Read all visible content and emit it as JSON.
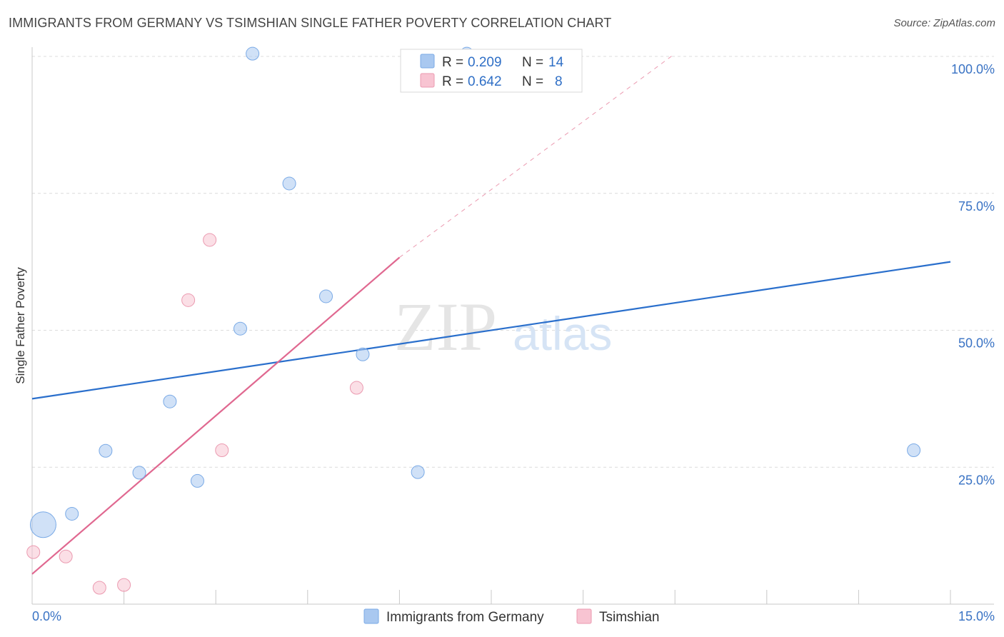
{
  "title": "IMMIGRANTS FROM GERMANY VS TSIMSHIAN SINGLE FATHER POVERTY CORRELATION CHART",
  "source": "Source: ZipAtlas.com",
  "watermark": {
    "zip": "ZIP",
    "atlas": "atlas"
  },
  "chart_data": {
    "type": "scatter",
    "title": "IMMIGRANTS FROM GERMANY VS TSIMSHIAN SINGLE FATHER POVERTY CORRELATION CHART",
    "xlabel": "",
    "ylabel": "Single Father Poverty",
    "xlim": [
      0,
      15
    ],
    "ylim": [
      0,
      100
    ],
    "x_ticks": [
      "0.0%",
      "15.0%"
    ],
    "y_ticks": [
      {
        "value": 25,
        "label": "25.0%"
      },
      {
        "value": 50,
        "label": "50.0%"
      },
      {
        "value": 75,
        "label": "75.0%"
      },
      {
        "value": 100,
        "label": "100.0%"
      }
    ],
    "grid": true,
    "legend_position": "top-center",
    "series": [
      {
        "name": "Immigrants from Germany",
        "color": "#a9c8f0",
        "stroke": "#7aaae6",
        "line_color": "#2a6fcc",
        "R": "0.209",
        "N": "14",
        "trend": {
          "x": [
            0,
            15
          ],
          "y": [
            37.5,
            62.5
          ]
        },
        "points": [
          {
            "x": 0.18,
            "y": 14.5,
            "size": 18
          },
          {
            "x": 0.65,
            "y": 16.5,
            "size": 9
          },
          {
            "x": 1.2,
            "y": 28,
            "size": 9
          },
          {
            "x": 1.75,
            "y": 24,
            "size": 9
          },
          {
            "x": 2.25,
            "y": 37,
            "size": 9
          },
          {
            "x": 2.7,
            "y": 22.5,
            "size": 9
          },
          {
            "x": 3.4,
            "y": 50.3,
            "size": 9
          },
          {
            "x": 3.6,
            "y": 100.5,
            "size": 9
          },
          {
            "x": 4.2,
            "y": 76.8,
            "size": 9
          },
          {
            "x": 4.8,
            "y": 56.2,
            "size": 9
          },
          {
            "x": 5.4,
            "y": 45.6,
            "size": 9
          },
          {
            "x": 6.3,
            "y": 24.1,
            "size": 9
          },
          {
            "x": 7.1,
            "y": 100.5,
            "size": 9
          },
          {
            "x": 14.4,
            "y": 28.1,
            "size": 9
          }
        ]
      },
      {
        "name": "Tsimshian",
        "color": "#f8c4d2",
        "stroke": "#eb9ab0",
        "line_color": "#e06890",
        "R": "0.642",
        "N": "8",
        "trend": {
          "x": [
            0,
            6
          ],
          "y": [
            5.5,
            63.3
          ]
        },
        "trend_ext": {
          "x": [
            6,
            10.5
          ],
          "y": [
            63.3,
            100.5
          ]
        },
        "points": [
          {
            "x": 0.02,
            "y": 9.5,
            "size": 9
          },
          {
            "x": 0.55,
            "y": 8.7,
            "size": 9
          },
          {
            "x": 1.1,
            "y": 3,
            "size": 9
          },
          {
            "x": 1.5,
            "y": 3.5,
            "size": 9
          },
          {
            "x": 2.55,
            "y": 55.5,
            "size": 9
          },
          {
            "x": 2.9,
            "y": 66.5,
            "size": 9
          },
          {
            "x": 3.1,
            "y": 28.1,
            "size": 9
          },
          {
            "x": 5.3,
            "y": 39.5,
            "size": 9
          }
        ]
      }
    ]
  }
}
